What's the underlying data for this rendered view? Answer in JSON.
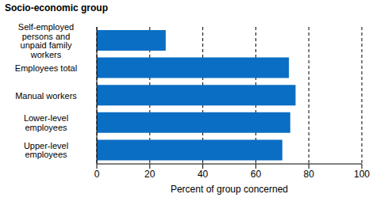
{
  "chart_data": {
    "type": "bar",
    "orientation": "horizontal",
    "y_label": "Socio-economic group",
    "x_label": "Percent of group concerned",
    "categories": [
      "Self-employed persons and unpaid family workers",
      "Employees total",
      "Manual workers",
      "Lower-level employees",
      "Upper-level employees"
    ],
    "values": [
      26,
      72.5,
      75,
      73,
      70
    ],
    "color": "#0a6ec4",
    "xlim": [
      0,
      100
    ],
    "xticks": [
      0,
      20,
      40,
      60,
      80,
      100
    ],
    "grid": true
  }
}
